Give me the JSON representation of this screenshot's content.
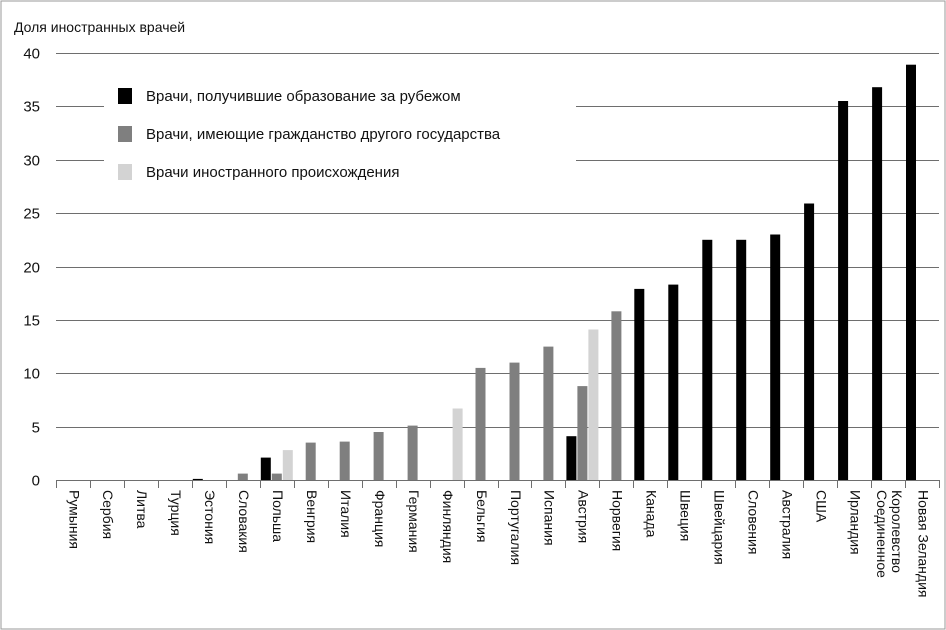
{
  "chart_data": {
    "type": "bar",
    "ylabel": "Доля иностранных врачей",
    "ylim": [
      0,
      40
    ],
    "yticks": [
      0,
      5,
      10,
      15,
      20,
      25,
      30,
      35,
      40
    ],
    "grid": true,
    "legend_position": "top-left",
    "categories": [
      "Румыния",
      "Сербия",
      "Литва",
      "Турция",
      "Эстония",
      "Словакия",
      "Польша",
      "Венгрия",
      "Италия",
      "Франция",
      "Германия",
      "Финляндия",
      "Бельгия",
      "Португалия",
      "Испания",
      "Австрия",
      "Норвегия",
      "Канада",
      "Швеция",
      "Швейцария",
      "Словения",
      "Австралия",
      "США",
      "Ирландия",
      "Соединенное Королевство",
      "Новая Зеландия"
    ],
    "category_lines": {
      "Соединенное Королевство": [
        "Соединенное",
        "Королевство"
      ]
    },
    "series": [
      {
        "name": "Врачи, получившие образование за рубежом",
        "color": "#000000",
        "values": [
          null,
          null,
          null,
          null,
          0.1,
          null,
          2.1,
          null,
          null,
          null,
          null,
          null,
          null,
          null,
          null,
          4.1,
          null,
          17.9,
          18.3,
          22.5,
          22.5,
          23.0,
          25.9,
          35.5,
          36.8,
          38.9
        ]
      },
      {
        "name": "Врачи, имеющие гражданство другого государства",
        "color": "#7f7f7f",
        "values": [
          null,
          null,
          null,
          null,
          null,
          0.6,
          0.6,
          3.5,
          3.6,
          4.5,
          5.1,
          null,
          10.5,
          11.0,
          12.5,
          8.8,
          15.8,
          null,
          null,
          null,
          null,
          null,
          null,
          null,
          null,
          null
        ]
      },
      {
        "name": "Врачи иностранного происхождения",
        "color": "#d3d3d3",
        "values": [
          null,
          null,
          null,
          null,
          null,
          null,
          2.8,
          null,
          null,
          null,
          null,
          6.7,
          null,
          null,
          null,
          14.1,
          null,
          null,
          null,
          null,
          null,
          null,
          null,
          null,
          null,
          null
        ]
      }
    ]
  }
}
